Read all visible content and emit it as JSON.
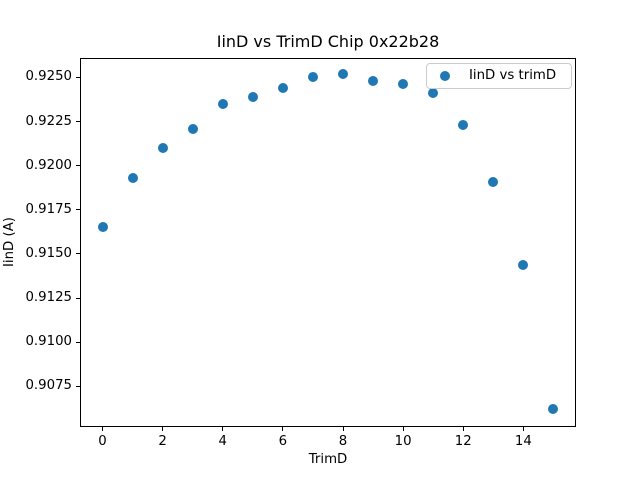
{
  "chart_data": {
    "type": "scatter",
    "title": "IinD vs TrimD Chip 0x22b28",
    "xlabel": "TrimD",
    "ylabel": "IinD (A)",
    "marker_color": "#1f77b4",
    "series": [
      {
        "name": "IinD vs trimD",
        "x": [
          0,
          1,
          2,
          3,
          4,
          5,
          6,
          7,
          8,
          9,
          10,
          11,
          12,
          13,
          14,
          15
        ],
        "y": [
          0.9165,
          0.9193,
          0.921,
          0.9221,
          0.9235,
          0.9239,
          0.9244,
          0.925,
          0.9252,
          0.9248,
          0.9246,
          0.9241,
          0.9223,
          0.9191,
          0.9144,
          0.9062
        ]
      }
    ],
    "xlim": [
      -0.75,
      15.75
    ],
    "ylim": [
      0.9052,
      0.9261
    ],
    "x_ticks": [
      0,
      2,
      4,
      6,
      8,
      10,
      12,
      14
    ],
    "y_ticks": [
      0.9075,
      0.91,
      0.9125,
      0.915,
      0.9175,
      0.92,
      0.9225,
      0.925
    ],
    "grid": false,
    "legend": {
      "label": "IinD vs trimD",
      "position": "upper right",
      "border_color": "#cccccc"
    }
  }
}
